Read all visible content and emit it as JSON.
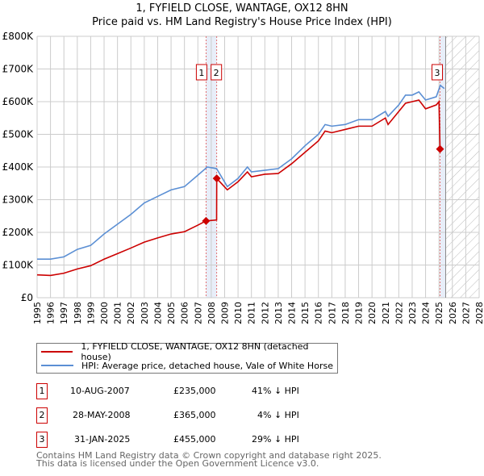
{
  "chart_data": {
    "type": "line",
    "title": "1, FYFIELD CLOSE, WANTAGE, OX12 8HN",
    "subtitle": "Price paid vs. HM Land Registry's House Price Index (HPI)",
    "xlim": [
      1995,
      2028
    ],
    "ylim": [
      0,
      800000
    ],
    "x_ticks": [
      "1995",
      "1996",
      "1997",
      "1998",
      "1999",
      "2000",
      "2001",
      "2002",
      "2003",
      "2004",
      "2005",
      "2006",
      "2007",
      "2008",
      "2009",
      "2010",
      "2011",
      "2012",
      "2013",
      "2014",
      "2015",
      "2016",
      "2017",
      "2018",
      "2019",
      "2020",
      "2021",
      "2022",
      "2023",
      "2024",
      "2025",
      "2026",
      "2027",
      "2028"
    ],
    "y_ticks": [
      {
        "v": 0,
        "label": "£0"
      },
      {
        "v": 100000,
        "label": "£100K"
      },
      {
        "v": 200000,
        "label": "£200K"
      },
      {
        "v": 300000,
        "label": "£300K"
      },
      {
        "v": 400000,
        "label": "£400K"
      },
      {
        "v": 500000,
        "label": "£500K"
      },
      {
        "v": 600000,
        "label": "£600K"
      },
      {
        "v": 700000,
        "label": "£700K"
      },
      {
        "v": 800000,
        "label": "£800K"
      }
    ],
    "grid": true,
    "forecast_hatch_from": 2025.5,
    "series": [
      {
        "name": "1, FYFIELD CLOSE, WANTAGE, OX12 8HN (detached house)",
        "color": "#cc0000",
        "x": [
          1995,
          1996,
          1997,
          1998,
          1999,
          2000,
          2001,
          2002,
          2003,
          2004,
          2005,
          2006,
          2007,
          2007.61,
          2008.4,
          2008.41,
          2009.2,
          2010,
          2010.7,
          2011,
          2012,
          2013,
          2014,
          2015,
          2016,
          2016.5,
          2017,
          2018,
          2019,
          2020,
          2021,
          2021.2,
          2022,
          2022.5,
          2023,
          2023.5,
          2024,
          2024.8,
          2025.0,
          2025.08
        ],
        "y": [
          70000,
          68000,
          75000,
          88000,
          98000,
          118000,
          135000,
          152000,
          170000,
          183000,
          195000,
          202000,
          222000,
          235000,
          238000,
          365000,
          330000,
          355000,
          385000,
          370000,
          378000,
          380000,
          410000,
          445000,
          480000,
          510000,
          505000,
          515000,
          525000,
          525000,
          550000,
          530000,
          570000,
          595000,
          600000,
          605000,
          578000,
          590000,
          600000,
          455000
        ]
      },
      {
        "name": "HPI: Average price, detached house, Vale of White Horse",
        "color": "#5b8fd4",
        "x": [
          1995,
          1996,
          1997,
          1998,
          1999,
          2000,
          2001,
          2002,
          2003,
          2004,
          2005,
          2006,
          2007,
          2007.7,
          2008.4,
          2009.2,
          2010,
          2010.7,
          2011,
          2012,
          2013,
          2014,
          2015,
          2016,
          2016.5,
          2017,
          2018,
          2019,
          2020,
          2021,
          2021.2,
          2022,
          2022.5,
          2023,
          2023.5,
          2024,
          2024.8,
          2025.1,
          2025.4
        ],
        "y": [
          118000,
          118000,
          125000,
          148000,
          160000,
          195000,
          225000,
          255000,
          290000,
          310000,
          330000,
          340000,
          375000,
          400000,
          395000,
          340000,
          365000,
          400000,
          385000,
          390000,
          395000,
          425000,
          465000,
          500000,
          530000,
          525000,
          530000,
          545000,
          545000,
          570000,
          555000,
          590000,
          620000,
          620000,
          630000,
          605000,
          615000,
          650000,
          640000
        ]
      }
    ],
    "sales": [
      {
        "id": "1",
        "x": 2007.61,
        "price": 235000,
        "date": "10-AUG-2007",
        "price_label": "£235,000",
        "hpi": "41% ↓ HPI"
      },
      {
        "id": "2",
        "x": 2008.41,
        "price": 365000,
        "date": "28-MAY-2008",
        "price_label": "£365,000",
        "hpi": "4% ↓ HPI"
      },
      {
        "id": "3",
        "x": 2025.08,
        "price": 455000,
        "date": "31-JAN-2025",
        "price_label": "£455,000",
        "hpi": "29% ↓ HPI"
      }
    ]
  },
  "footer": {
    "line1": "Contains HM Land Registry data © Crown copyright and database right 2025.",
    "line2": "This data is licensed under the Open Government Licence v3.0."
  }
}
